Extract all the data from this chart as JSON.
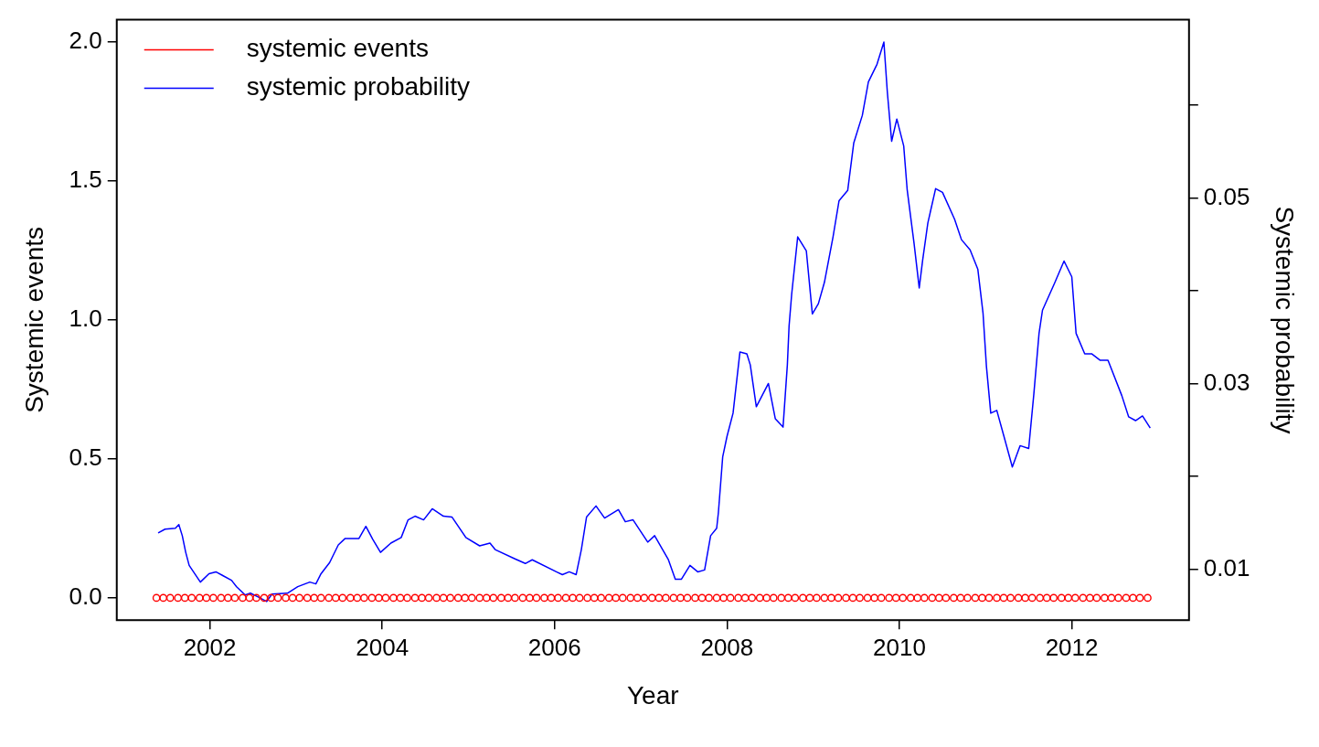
{
  "chart_data": {
    "type": "line",
    "xlabel": "Year",
    "ylabel": "Systemic events",
    "y2label": "Systemic probability",
    "xlim": [
      2000.92,
      2013.36
    ],
    "xticks": [
      2002,
      2004,
      2006,
      2008,
      2010,
      2012
    ],
    "ylim": [
      -0.08,
      2.08
    ],
    "yticks": [
      {
        "value": 0,
        "label": "0.0"
      },
      {
        "value": 0.5,
        "label": "0.5"
      },
      {
        "value": 1,
        "label": "1.0"
      },
      {
        "value": 1.5,
        "label": "1.5"
      },
      {
        "value": 2,
        "label": "2.0"
      }
    ],
    "y2lim": [
      0.0045,
      0.0692
    ],
    "y2ticks": [
      0.01,
      {
        "value": 0.02,
        "label": null
      },
      0.03,
      {
        "value": 0.04,
        "label": null
      },
      0.05,
      {
        "value": 0.06,
        "label": null
      }
    ],
    "legend": "top left",
    "series": [
      {
        "name": "systemic events",
        "type": "scatter",
        "marker": "circle",
        "color": "#ff0000",
        "x": [
          2001.38,
          2001.46,
          2001.54,
          2001.63,
          2001.71,
          2001.79,
          2001.88,
          2001.96,
          2002.04,
          2002.13,
          2002.21,
          2002.29,
          2002.38,
          2002.46,
          2002.54,
          2002.63,
          2002.71,
          2002.79,
          2002.88,
          2002.96,
          2003.04,
          2003.13,
          2003.21,
          2003.29,
          2003.38,
          2003.46,
          2003.54,
          2003.63,
          2003.71,
          2003.79,
          2003.88,
          2003.96,
          2004.04,
          2004.13,
          2004.21,
          2004.29,
          2004.38,
          2004.46,
          2004.54,
          2004.63,
          2004.71,
          2004.79,
          2004.88,
          2004.96,
          2005.04,
          2005.13,
          2005.21,
          2005.29,
          2005.38,
          2005.46,
          2005.54,
          2005.63,
          2005.71,
          2005.79,
          2005.88,
          2005.96,
          2006.04,
          2006.13,
          2006.21,
          2006.29,
          2006.38,
          2006.46,
          2006.54,
          2006.63,
          2006.71,
          2006.79,
          2006.88,
          2006.96,
          2007.04,
          2007.13,
          2007.21,
          2007.29,
          2007.38,
          2007.46,
          2007.54,
          2007.63,
          2007.71,
          2007.79,
          2007.88,
          2007.96,
          2008.04,
          2008.13,
          2008.21,
          2008.29,
          2008.38,
          2008.46,
          2008.54,
          2008.63,
          2008.71,
          2008.79,
          2008.88,
          2008.96,
          2009.04,
          2009.13,
          2009.21,
          2009.29,
          2009.38,
          2009.46,
          2009.54,
          2009.63,
          2009.71,
          2009.79,
          2009.88,
          2009.96,
          2010.04,
          2010.13,
          2010.21,
          2010.29,
          2010.38,
          2010.46,
          2010.54,
          2010.63,
          2010.71,
          2010.79,
          2010.88,
          2010.96,
          2011.04,
          2011.13,
          2011.21,
          2011.29,
          2011.38,
          2011.46,
          2011.54,
          2011.63,
          2011.71,
          2011.79,
          2011.88,
          2011.96,
          2012.04,
          2012.13,
          2012.21,
          2012.29,
          2012.38,
          2012.46,
          2012.54,
          2012.63,
          2012.71,
          2012.79,
          2012.88
        ],
        "values": [
          0,
          0,
          0,
          0,
          0,
          0,
          0,
          0,
          0,
          0,
          0,
          0,
          0,
          0,
          0,
          0,
          0,
          0,
          0,
          0,
          0,
          0,
          0,
          0,
          0,
          0,
          0,
          0,
          0,
          0,
          0,
          0,
          0,
          0,
          0,
          0,
          0,
          0,
          0,
          0,
          0,
          0,
          0,
          0,
          0,
          0,
          0,
          0,
          0,
          0,
          0,
          0,
          0,
          0,
          0,
          0,
          0,
          0,
          0,
          0,
          0,
          0,
          0,
          0,
          0,
          0,
          0,
          0,
          0,
          0,
          0,
          0,
          0,
          0,
          0,
          0,
          0,
          0,
          0,
          0,
          0,
          0,
          0,
          0,
          0,
          0,
          0,
          0,
          0,
          0,
          0,
          0,
          0,
          0,
          0,
          0,
          0,
          0,
          0,
          0,
          0,
          0,
          0,
          0,
          0,
          0,
          0,
          0,
          0,
          0,
          0,
          0,
          0,
          0,
          0,
          0,
          0,
          0,
          0,
          0,
          0,
          0,
          0,
          0,
          0,
          0,
          0,
          0,
          0,
          0,
          0,
          0,
          0,
          0,
          0,
          0,
          0,
          0,
          0
        ]
      },
      {
        "name": "systemic probability",
        "marker": "none",
        "axis": "y2",
        "color": "#0000ff",
        "x": [
          2001.4,
          2001.48,
          2001.6,
          2001.64,
          2001.68,
          2001.72,
          2001.76,
          2001.89,
          2001.99,
          2002.07,
          2002.15,
          2002.25,
          2002.31,
          2002.41,
          2002.47,
          2002.56,
          2002.66,
          2002.72,
          2002.9,
          2003.02,
          2003.16,
          2003.23,
          2003.29,
          2003.39,
          2003.49,
          2003.57,
          2003.73,
          2003.81,
          2003.89,
          2003.98,
          2004.1,
          2004.22,
          2004.3,
          2004.38,
          2004.48,
          2004.58,
          2004.71,
          2004.81,
          2004.97,
          2005.13,
          2005.25,
          2005.31,
          2005.54,
          2005.66,
          2005.74,
          2006.02,
          2006.09,
          2006.17,
          2006.25,
          2006.31,
          2006.37,
          2006.48,
          2006.58,
          2006.74,
          2006.82,
          2006.91,
          2007.08,
          2007.16,
          2007.32,
          2007.4,
          2007.47,
          2007.57,
          2007.66,
          2007.74,
          2007.81,
          2007.88,
          2007.9,
          2007.95,
          2008.0,
          2008.07,
          2008.15,
          2008.23,
          2008.27,
          2008.34,
          2008.48,
          2008.56,
          2008.65,
          2008.7,
          2008.72,
          2008.75,
          2008.82,
          2008.92,
          2008.99,
          2009.06,
          2009.13,
          2009.23,
          2009.3,
          2009.4,
          2009.47,
          2009.57,
          2009.64,
          2009.74,
          2009.82,
          2009.86,
          2009.91,
          2009.97,
          2010.05,
          2010.09,
          2010.17,
          2010.23,
          2010.27,
          2010.33,
          2010.42,
          2010.5,
          2010.64,
          2010.72,
          2010.82,
          2010.91,
          2010.97,
          2011.01,
          2011.06,
          2011.13,
          2011.21,
          2011.31,
          2011.4,
          2011.5,
          2011.56,
          2011.62,
          2011.66,
          2011.8,
          2011.91,
          2012.0,
          2012.05,
          2012.15,
          2012.23,
          2012.33,
          2012.42,
          2012.58,
          2012.66,
          2012.74,
          2012.82,
          2012.91
        ],
        "values": [
          0.0139,
          0.0143,
          0.0144,
          0.0148,
          0.0136,
          0.0118,
          0.0104,
          0.0086,
          0.0095,
          0.0097,
          0.0093,
          0.0088,
          0.0081,
          0.0072,
          0.0074,
          0.007,
          0.0065,
          0.0073,
          0.0074,
          0.0081,
          0.0086,
          0.0084,
          0.0095,
          0.0107,
          0.0126,
          0.0133,
          0.0133,
          0.0146,
          0.0132,
          0.0118,
          0.0128,
          0.0134,
          0.0153,
          0.0157,
          0.0153,
          0.0165,
          0.0157,
          0.0156,
          0.0134,
          0.0125,
          0.0128,
          0.0121,
          0.0111,
          0.0106,
          0.011,
          0.0097,
          0.0094,
          0.0097,
          0.0094,
          0.0121,
          0.0156,
          0.0168,
          0.0155,
          0.0164,
          0.0151,
          0.0153,
          0.0129,
          0.0136,
          0.011,
          0.0089,
          0.0089,
          0.0104,
          0.0097,
          0.0099,
          0.0136,
          0.0144,
          0.0161,
          0.0221,
          0.0243,
          0.0268,
          0.0334,
          0.0332,
          0.032,
          0.0275,
          0.03,
          0.0262,
          0.0253,
          0.032,
          0.0362,
          0.0396,
          0.0458,
          0.0443,
          0.0375,
          0.0386,
          0.0409,
          0.0458,
          0.0497,
          0.0508,
          0.0559,
          0.0589,
          0.0625,
          0.0644,
          0.0668,
          0.0614,
          0.0561,
          0.0585,
          0.0556,
          0.0509,
          0.0451,
          0.0403,
          0.0433,
          0.0473,
          0.051,
          0.0506,
          0.0477,
          0.0455,
          0.0444,
          0.0423,
          0.0376,
          0.0318,
          0.0268,
          0.0271,
          0.0244,
          0.021,
          0.0233,
          0.023,
          0.0289,
          0.0354,
          0.0379,
          0.0408,
          0.0432,
          0.0415,
          0.0354,
          0.0332,
          0.0332,
          0.0325,
          0.0325,
          0.0287,
          0.0264,
          0.026,
          0.0265,
          0.0252
        ]
      }
    ]
  }
}
